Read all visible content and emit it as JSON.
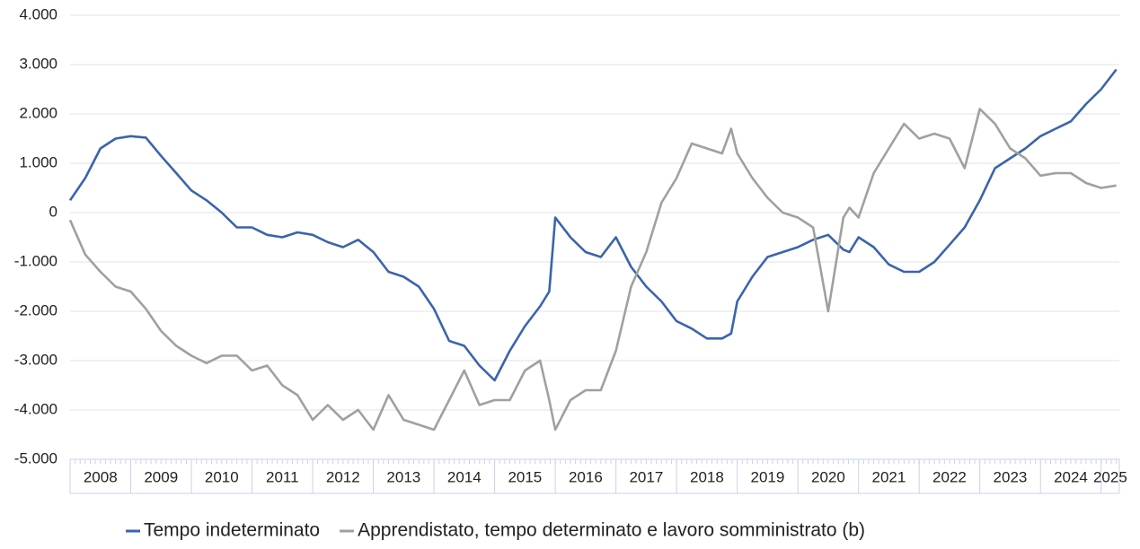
{
  "chart_data": {
    "type": "line",
    "x": [
      2008,
      2008.25,
      2008.5,
      2008.75,
      2009,
      2009.25,
      2009.5,
      2009.75,
      2010,
      2010.25,
      2010.5,
      2010.75,
      2011,
      2011.25,
      2011.5,
      2011.75,
      2012,
      2012.25,
      2012.5,
      2012.75,
      2013,
      2013.25,
      2013.5,
      2013.75,
      2014,
      2014.25,
      2014.5,
      2014.75,
      2015,
      2015.25,
      2015.5,
      2015.75,
      2015.9,
      2016,
      2016.25,
      2016.5,
      2016.75,
      2017,
      2017.25,
      2017.5,
      2017.75,
      2018,
      2018.25,
      2018.5,
      2018.75,
      2018.9,
      2019,
      2019.25,
      2019.5,
      2019.75,
      2020,
      2020.25,
      2020.5,
      2020.75,
      2020.85,
      2021,
      2021.25,
      2021.5,
      2021.75,
      2022,
      2022.25,
      2022.5,
      2022.75,
      2023,
      2023.25,
      2023.5,
      2023.75,
      2024,
      2024.25,
      2024.5,
      2024.75,
      2025,
      2025.25
    ],
    "series": [
      {
        "name": "Tempo indeterminato",
        "color": "#3a64ad",
        "values": [
          250,
          700,
          1300,
          1500,
          1550,
          1520,
          1150,
          800,
          450,
          250,
          0,
          -300,
          -300,
          -450,
          -500,
          -400,
          -450,
          -600,
          -700,
          -550,
          -800,
          -1200,
          -1300,
          -1500,
          -1950,
          -2600,
          -2700,
          -3100,
          -3400,
          -2800,
          -2300,
          -1900,
          -1600,
          -100,
          -500,
          -800,
          -900,
          -500,
          -1100,
          -1500,
          -1800,
          -2200,
          -2350,
          -2550,
          -2550,
          -2450,
          -1800,
          -1300,
          -900,
          -800,
          -700,
          -550,
          -450,
          -750,
          -800,
          -500,
          -700,
          -1050,
          -1200,
          -1200,
          -1000,
          -650,
          -300,
          250,
          900,
          1100,
          1300,
          1550,
          1700,
          1850,
          2200,
          2500,
          2900
        ]
      },
      {
        "name": "Apprendistato, tempo determinato e lavoro somministrato (b)",
        "color": "#a0a0a0",
        "values": [
          -150,
          -850,
          -1200,
          -1500,
          -1600,
          -1950,
          -2400,
          -2700,
          -2900,
          -3050,
          -2900,
          -2900,
          -3200,
          -3100,
          -3500,
          -3700,
          -4200,
          -3900,
          -4200,
          -4000,
          -4400,
          -3700,
          -4200,
          -4300,
          -4400,
          -3800,
          -3200,
          -3900,
          -3800,
          -3800,
          -3200,
          -3000,
          -3800,
          -4400,
          -3800,
          -3600,
          -3600,
          -2800,
          -1500,
          -800,
          200,
          700,
          1400,
          1300,
          1200,
          1700,
          1200,
          700,
          300,
          0,
          -100,
          -300,
          -2000,
          -100,
          100,
          -100,
          800,
          1300,
          1800,
          1500,
          1600,
          1500,
          900,
          2100,
          1800,
          1300,
          1100,
          750,
          800,
          800,
          600,
          500,
          550
        ]
      }
    ],
    "xlim": [
      2008,
      2025.3
    ],
    "xticks": [
      2008,
      2009,
      2010,
      2011,
      2012,
      2013,
      2014,
      2015,
      2016,
      2017,
      2018,
      2019,
      2020,
      2021,
      2022,
      2023,
      2024,
      2025
    ],
    "ylim": [
      -5000,
      4000
    ],
    "yticks": [
      {
        "value": -5000,
        "label": "-5.000"
      },
      {
        "value": -4000,
        "label": "-4.000"
      },
      {
        "value": -3000,
        "label": "-3.000"
      },
      {
        "value": -2000,
        "label": "-2.000"
      },
      {
        "value": -1000,
        "label": "-1.000"
      },
      0,
      {
        "value": 1000,
        "label": "1.000"
      },
      {
        "value": 2000,
        "label": "2.000"
      },
      {
        "value": 3000,
        "label": "3.000"
      },
      {
        "value": 4000,
        "label": "4.000"
      }
    ],
    "grid": true,
    "legend": "bottom"
  }
}
